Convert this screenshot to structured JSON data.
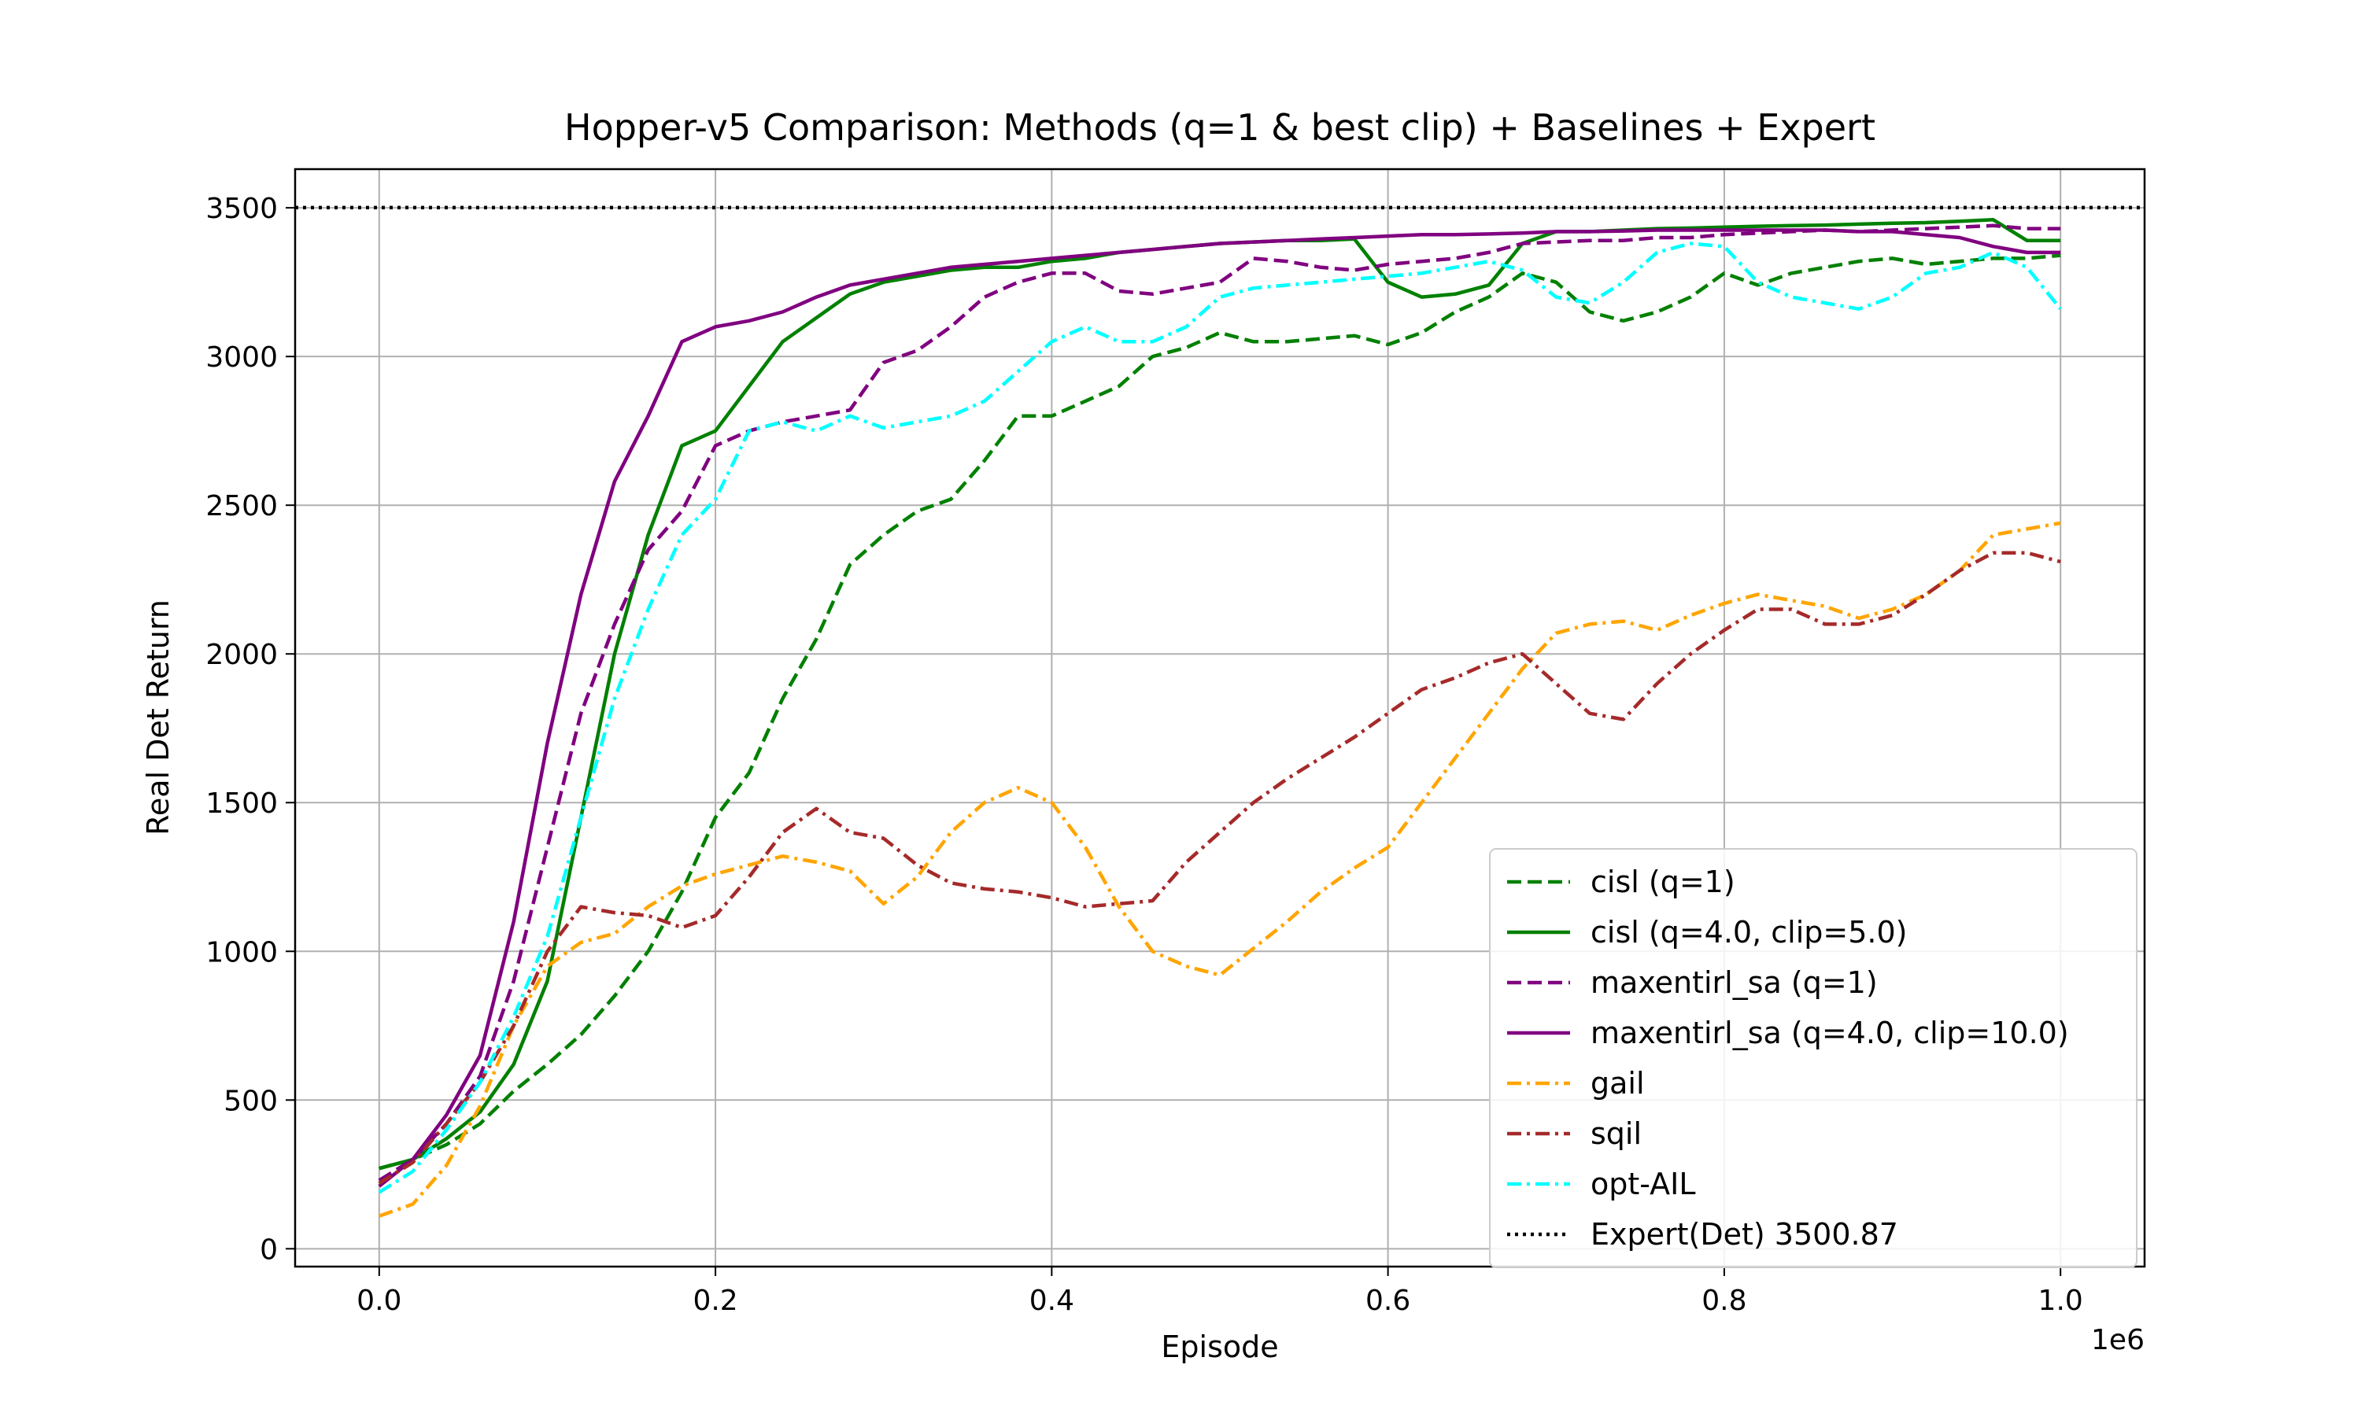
{
  "chart_data": {
    "type": "line",
    "title": "Hopper-v5 Comparison: Methods (q=1 & best clip) + Baselines + Expert",
    "xlabel": "Episode",
    "ylabel": "Real Det Return",
    "x_scale_label": "1e6",
    "xlim": [
      -0.05,
      1.05
    ],
    "ylim": [
      -60,
      3630
    ],
    "xticks": [
      0.0,
      0.2,
      0.4,
      0.6,
      0.8,
      1.0
    ],
    "xtick_labels": [
      "0.0",
      "0.2",
      "0.4",
      "0.6",
      "0.8",
      "1.0"
    ],
    "yticks": [
      0,
      500,
      1000,
      1500,
      2000,
      2500,
      3000,
      3500
    ],
    "ytick_labels": [
      "0",
      "500",
      "1000",
      "1500",
      "2000",
      "2500",
      "3000",
      "3500"
    ],
    "grid": true,
    "legend_position": "lower-right",
    "x": [
      0.0,
      0.02,
      0.04,
      0.06,
      0.08,
      0.1,
      0.12,
      0.14,
      0.16,
      0.18,
      0.2,
      0.22,
      0.24,
      0.26,
      0.28,
      0.3,
      0.32,
      0.34,
      0.36,
      0.38,
      0.4,
      0.42,
      0.44,
      0.46,
      0.48,
      0.5,
      0.52,
      0.54,
      0.56,
      0.58,
      0.6,
      0.62,
      0.64,
      0.66,
      0.68,
      0.7,
      0.72,
      0.74,
      0.76,
      0.78,
      0.8,
      0.82,
      0.84,
      0.86,
      0.88,
      0.9,
      0.92,
      0.94,
      0.96,
      0.98,
      1.0
    ],
    "series": [
      {
        "name": "cisl (q=1)",
        "color": "#008000",
        "dash": "dashed",
        "values": [
          270,
          300,
          350,
          420,
          530,
          620,
          720,
          850,
          1000,
          1200,
          1450,
          1600,
          1850,
          2050,
          2300,
          2400,
          2480,
          2520,
          2650,
          2800,
          2800,
          2850,
          2900,
          3000,
          3030,
          3080,
          3050,
          3050,
          3060,
          3070,
          3040,
          3080,
          3150,
          3200,
          3280,
          3250,
          3150,
          3120,
          3150,
          3200,
          3280,
          3240,
          3280,
          3300,
          3320,
          3330,
          3310,
          3320,
          3330,
          3330,
          3340
        ]
      },
      {
        "name": "cisl (q=4.0, clip=5.0)",
        "color": "#008000",
        "dash": "solid",
        "values": [
          270,
          300,
          370,
          460,
          620,
          900,
          1450,
          2000,
          2400,
          2700,
          2750,
          2900,
          3050,
          3130,
          3210,
          3250,
          3270,
          3290,
          3300,
          3300,
          3320,
          3330,
          3350,
          3360,
          3370,
          3380,
          3385,
          3390,
          3390,
          3395,
          3250,
          3200,
          3210,
          3240,
          3380,
          3420,
          3420,
          3425,
          3430,
          3432,
          3435,
          3438,
          3440,
          3442,
          3445,
          3448,
          3450,
          3455,
          3460,
          3390,
          3390
        ]
      },
      {
        "name": "maxentirl_sa (q=1)",
        "color": "#800080",
        "dash": "dashed",
        "values": [
          230,
          300,
          420,
          580,
          900,
          1350,
          1800,
          2100,
          2350,
          2480,
          2700,
          2750,
          2780,
          2800,
          2820,
          2980,
          3020,
          3100,
          3200,
          3250,
          3280,
          3280,
          3220,
          3210,
          3230,
          3250,
          3330,
          3320,
          3300,
          3290,
          3310,
          3320,
          3330,
          3350,
          3380,
          3385,
          3390,
          3390,
          3400,
          3400,
          3410,
          3415,
          3420,
          3425,
          3420,
          3425,
          3430,
          3435,
          3440,
          3430,
          3430
        ]
      },
      {
        "name": "maxentirl_sa (q=4.0, clip=10.0)",
        "color": "#800080",
        "dash": "solid",
        "values": [
          210,
          300,
          450,
          650,
          1100,
          1700,
          2200,
          2580,
          2800,
          3050,
          3100,
          3120,
          3150,
          3200,
          3240,
          3260,
          3280,
          3300,
          3310,
          3320,
          3330,
          3340,
          3350,
          3360,
          3370,
          3380,
          3385,
          3390,
          3395,
          3400,
          3405,
          3410,
          3410,
          3412,
          3415,
          3420,
          3420,
          3422,
          3425,
          3425,
          3425,
          3425,
          3425,
          3425,
          3420,
          3420,
          3410,
          3400,
          3370,
          3350,
          3350
        ]
      },
      {
        "name": "gail",
        "color": "#ffa500",
        "dash": "dashdot",
        "values": [
          110,
          150,
          280,
          480,
          750,
          950,
          1030,
          1060,
          1150,
          1220,
          1260,
          1290,
          1320,
          1300,
          1270,
          1160,
          1250,
          1400,
          1500,
          1550,
          1500,
          1350,
          1150,
          1000,
          950,
          920,
          1010,
          1100,
          1200,
          1280,
          1350,
          1500,
          1650,
          1800,
          1950,
          2070,
          2100,
          2110,
          2080,
          2130,
          2170,
          2200,
          2180,
          2160,
          2120,
          2150,
          2200,
          2280,
          2400,
          2420,
          2440
        ]
      },
      {
        "name": "sqil",
        "color": "#a52a2a",
        "dash": "dashdot",
        "values": [
          220,
          290,
          420,
          560,
          750,
          1000,
          1150,
          1130,
          1120,
          1080,
          1120,
          1250,
          1400,
          1480,
          1400,
          1380,
          1290,
          1230,
          1210,
          1200,
          1180,
          1150,
          1160,
          1170,
          1300,
          1400,
          1500,
          1580,
          1650,
          1720,
          1800,
          1880,
          1920,
          1970,
          2000,
          1900,
          1800,
          1780,
          1900,
          2000,
          2080,
          2150,
          2150,
          2100,
          2100,
          2130,
          2200,
          2280,
          2340,
          2340,
          2310
        ]
      },
      {
        "name": "opt-AIL",
        "color": "#00ffff",
        "dash": "dashdot",
        "values": [
          190,
          260,
          400,
          560,
          780,
          1050,
          1450,
          1850,
          2150,
          2400,
          2520,
          2750,
          2780,
          2750,
          2800,
          2760,
          2780,
          2800,
          2850,
          2950,
          3050,
          3100,
          3050,
          3050,
          3100,
          3200,
          3230,
          3240,
          3250,
          3260,
          3270,
          3280,
          3300,
          3320,
          3290,
          3200,
          3180,
          3250,
          3350,
          3380,
          3370,
          3250,
          3200,
          3180,
          3160,
          3200,
          3280,
          3300,
          3350,
          3300,
          3160
        ]
      }
    ],
    "reference_line": {
      "name": "Expert(Det) 3500.87",
      "value": 3500.87,
      "color": "#000000",
      "dash": "dotted"
    }
  }
}
